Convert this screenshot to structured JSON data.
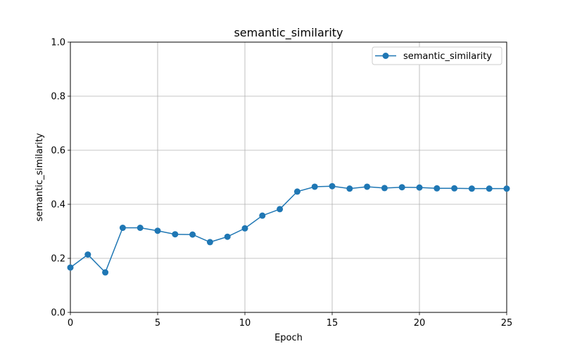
{
  "chart_data": {
    "type": "line",
    "title": "semantic_similarity",
    "xlabel": "Epoch",
    "ylabel": "semantic_similarity",
    "xlim": [
      0,
      25
    ],
    "ylim": [
      0,
      1.0
    ],
    "xticks": [
      0,
      5,
      10,
      15,
      20,
      25
    ],
    "yticks": [
      0.0,
      0.2,
      0.4,
      0.6,
      0.8,
      1.0
    ],
    "ytick_labels": [
      "0.0",
      "0.2",
      "0.4",
      "0.6",
      "0.8",
      "1.0"
    ],
    "grid": true,
    "legend_position": "top-right",
    "color": "#1f77b4",
    "series": [
      {
        "name": "semantic_similarity",
        "x": [
          0,
          1,
          2,
          3,
          4,
          5,
          6,
          7,
          8,
          9,
          10,
          11,
          12,
          13,
          14,
          15,
          16,
          17,
          18,
          19,
          20,
          21,
          22,
          23,
          24,
          25
        ],
        "y": [
          0.166,
          0.214,
          0.148,
          0.313,
          0.313,
          0.302,
          0.289,
          0.288,
          0.26,
          0.28,
          0.311,
          0.358,
          0.382,
          0.447,
          0.465,
          0.467,
          0.458,
          0.465,
          0.46,
          0.463,
          0.462,
          0.459,
          0.459,
          0.458,
          0.458,
          0.458
        ]
      }
    ]
  }
}
